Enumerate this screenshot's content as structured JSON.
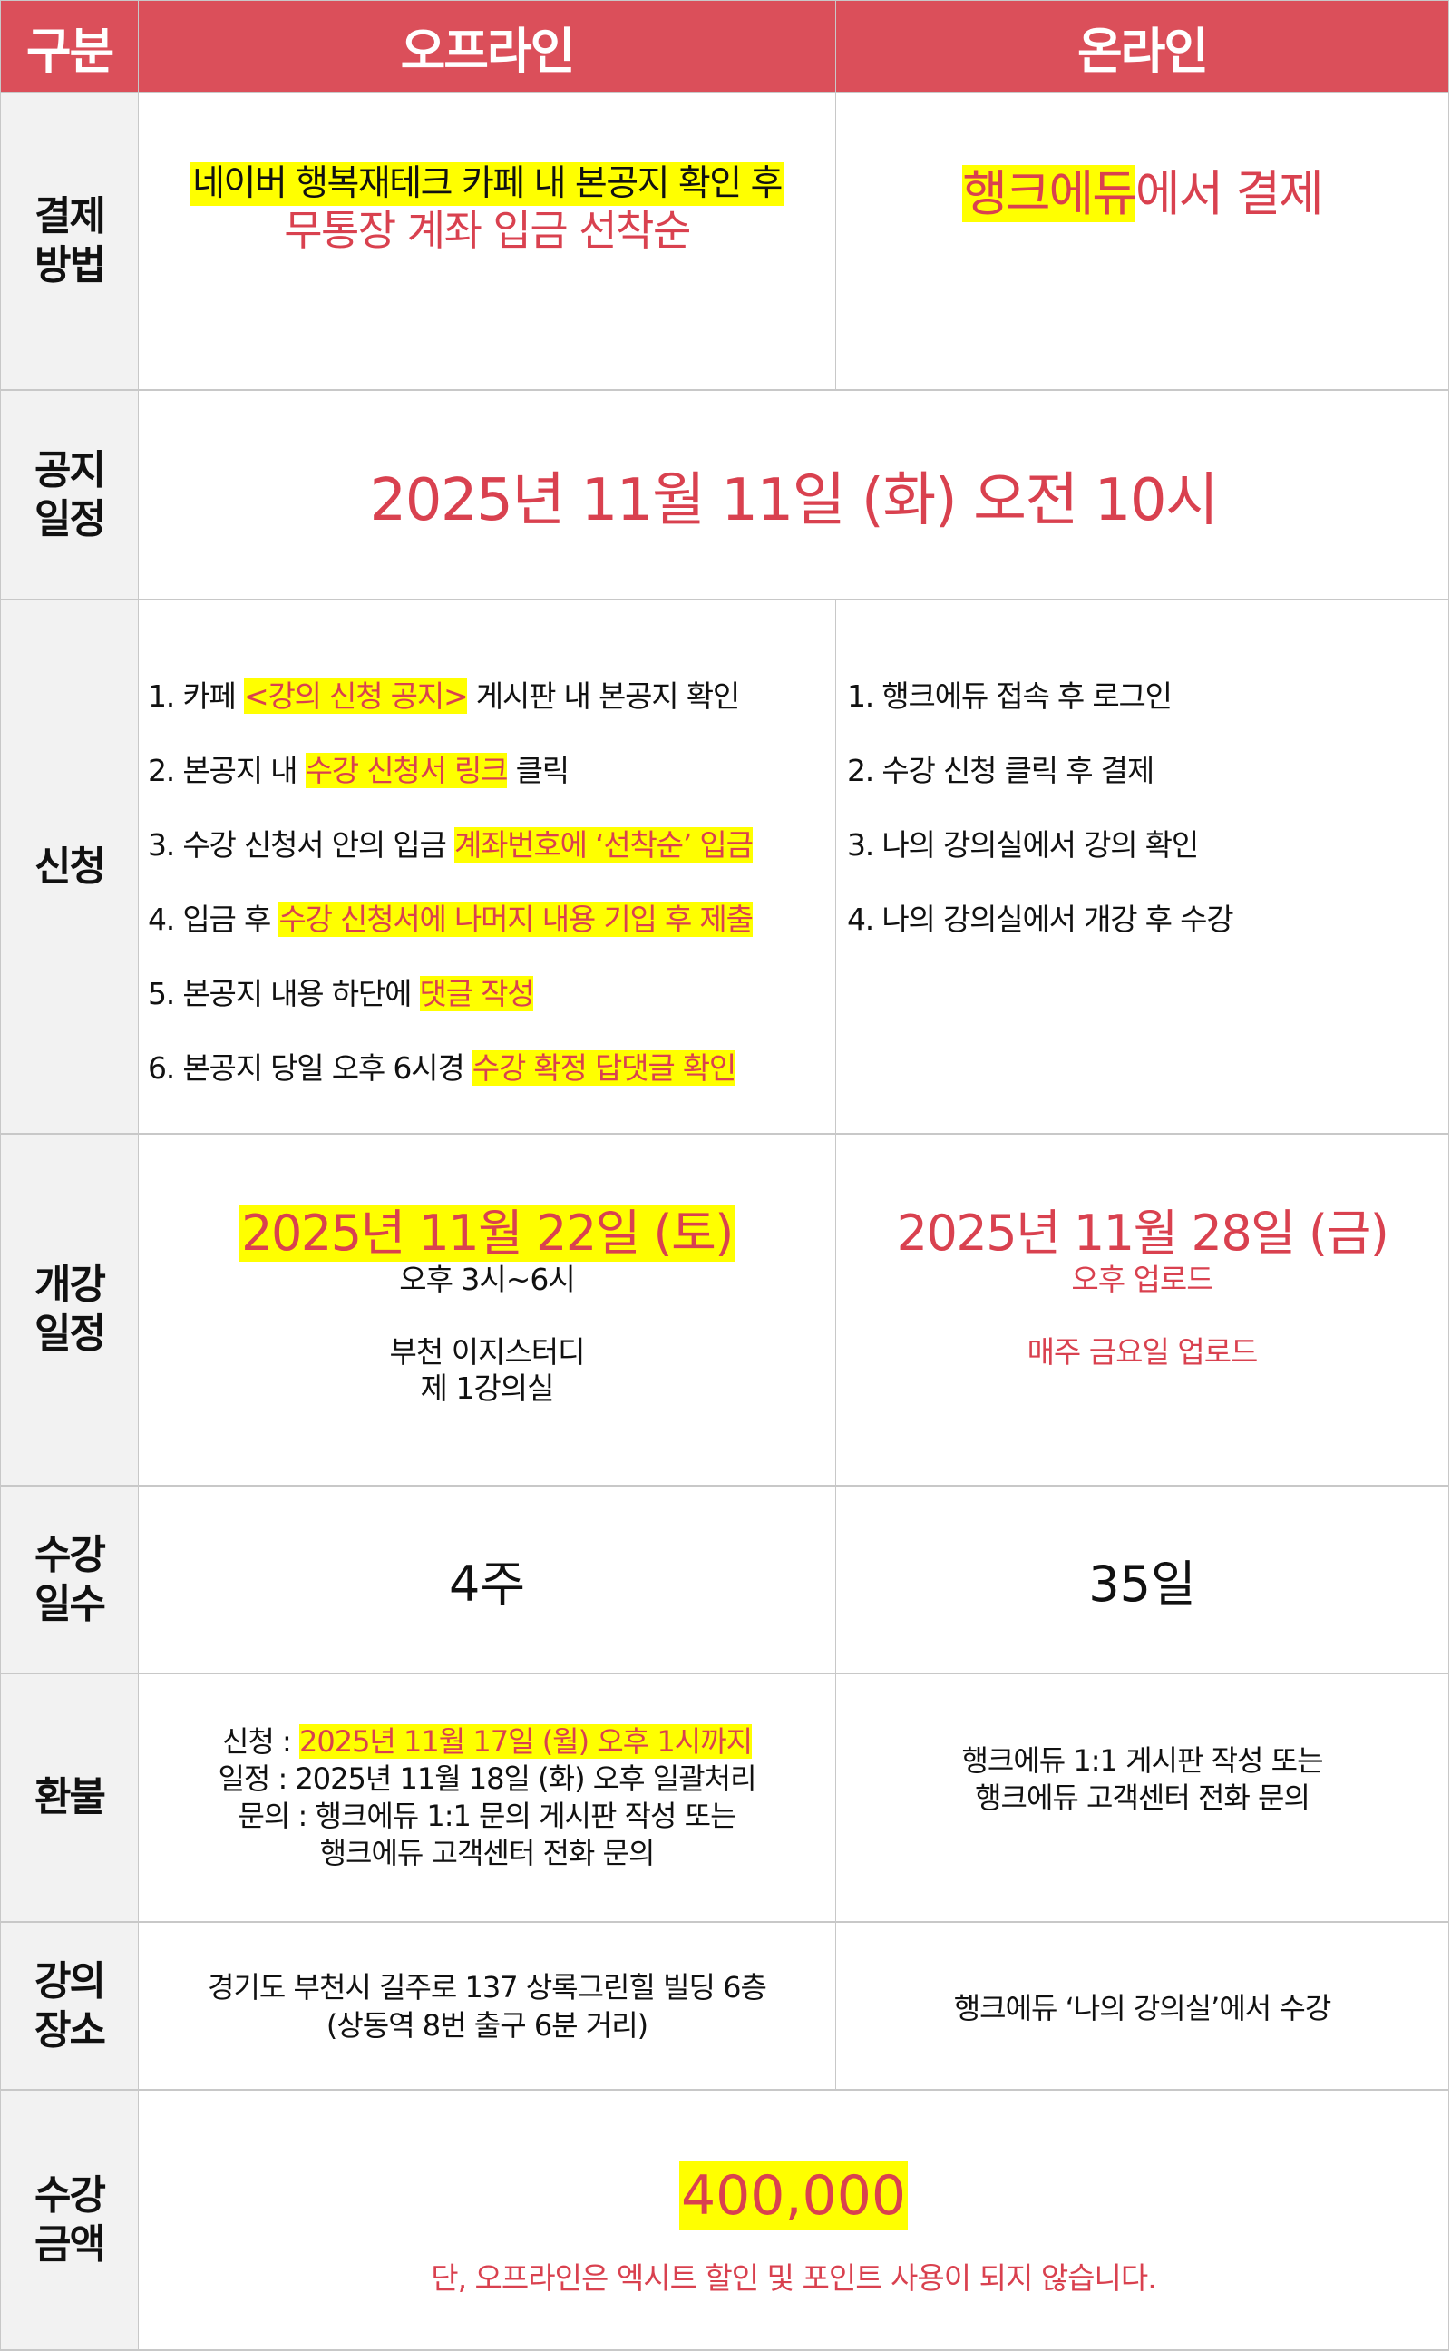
{
  "header": {
    "category": "구분",
    "offline": "오프라인",
    "online": "온라인"
  },
  "colors": {
    "header_bg": "#db4f5a",
    "accent_red": "#d9414f",
    "highlight": "#ffff00",
    "label_bg": "#f2f2f2"
  },
  "rows": {
    "payment": {
      "label": "결제\n방법",
      "offline_line1": "네이버 행복재테크 카페 내 본공지 확인 후",
      "offline_line2": "무통장 계좌 입금 선착순",
      "online_hl": "행크에듀",
      "online_rest": "에서 결제"
    },
    "notice": {
      "label": "공지\n일정",
      "date": "2025년 11월 11일 (화) 오전 10시"
    },
    "apply": {
      "label": "신청",
      "offline": [
        {
          "pre": "1. 카페 ",
          "hl": "<강의 신청 공지>",
          "post": " 게시판 내 본공지 확인"
        },
        {
          "pre": "2. 본공지 내 ",
          "hl": "수강 신청서 링크",
          "post": " 클릭"
        },
        {
          "pre": "3. 수강 신청서 안의 입금 ",
          "hl": "계좌번호에 ‘선착순’ 입금",
          "post": ""
        },
        {
          "pre": "4. 입금 후 ",
          "hl": "수강 신청서에 나머지 내용 기입 후 제출",
          "post": ""
        },
        {
          "pre": "5. 본공지 내용 하단에 ",
          "hl": "댓글 작성",
          "post": ""
        },
        {
          "pre": "6. 본공지 당일 오후 6시경 ",
          "hl": "수강 확정 답댓글 확인",
          "post": ""
        }
      ],
      "online": [
        "1. 행크에듀 접속 후 로그인",
        "2. 수강 신청 클릭 후 결제",
        "3. 나의 강의실에서 강의 확인",
        "4. 나의 강의실에서 개강 후 수강"
      ]
    },
    "start": {
      "label": "개강\n일정",
      "offline_date": "2025년 11월 22일 (토)",
      "offline_time": "오후 3시~6시",
      "offline_place1": "부천 이지스터디",
      "offline_place2": "제 1강의실",
      "online_date": "2025년 11월 28일 (금)",
      "online_time": "오후 업로드",
      "online_note": "매주 금요일 업로드"
    },
    "duration": {
      "label": "수강\n일수",
      "offline": "4주",
      "online": "35일"
    },
    "refund": {
      "label": "환불",
      "offline_apply_pre": "신청 : ",
      "offline_apply_hl": "2025년 11월 17일 (월) 오후 1시까지",
      "offline_line2": "일정 : 2025년 11월 18일 (화) 오후 일괄처리",
      "offline_line3": "문의 : 행크에듀 1:1 문의 게시판 작성 또는",
      "offline_line4": "행크에듀 고객센터 전화 문의",
      "online_line1": "행크에듀 1:1 게시판 작성 또는",
      "online_line2": "행크에듀 고객센터 전화 문의"
    },
    "place": {
      "label": "강의\n장소",
      "offline_line1": "경기도 부천시 길주로 137 상록그린힐 빌딩 6층",
      "offline_line2": "(상동역 8번 출구 6분 거리)",
      "online": "행크에듀 ‘나의 강의실’에서 수강"
    },
    "price": {
      "label": "수강\n금액",
      "amount": "400,000",
      "note": "단, 오프라인은 엑시트 할인 및 포인트 사용이 되지 않습니다."
    }
  }
}
